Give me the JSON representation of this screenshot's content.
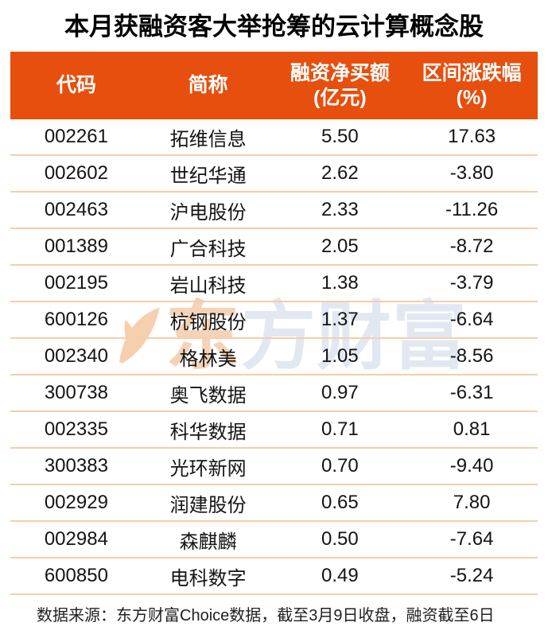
{
  "title": "本月获融资客大举抢筹的云计算概念股",
  "header": {
    "cells": [
      {
        "l1": "代码",
        "l2": ""
      },
      {
        "l1": "简称",
        "l2": ""
      },
      {
        "l1": "融资净买额",
        "l2": "(亿元)"
      },
      {
        "l1": "区间涨跌幅",
        "l2": "(%)"
      }
    ]
  },
  "chart_data": {
    "type": "table",
    "title": "本月获融资客大举抢筹的云计算概念股",
    "columns": [
      "代码",
      "简称",
      "融资净买额(亿元)",
      "区间涨跌幅(%)"
    ],
    "rows": [
      [
        "002261",
        "拓维信息",
        "5.50",
        "17.63"
      ],
      [
        "002602",
        "世纪华通",
        "2.62",
        "-3.80"
      ],
      [
        "002463",
        "沪电股份",
        "2.33",
        "-11.26"
      ],
      [
        "001389",
        "广合科技",
        "2.05",
        "-8.72"
      ],
      [
        "002195",
        "岩山科技",
        "1.38",
        "-3.79"
      ],
      [
        "600126",
        "杭钢股份",
        "1.37",
        "-6.64"
      ],
      [
        "002340",
        "格林美",
        "1.05",
        "-8.56"
      ],
      [
        "300738",
        "奥飞数据",
        "0.97",
        "-6.31"
      ],
      [
        "002335",
        "科华数据",
        "0.71",
        "0.81"
      ],
      [
        "300383",
        "光环新网",
        "0.70",
        "-9.40"
      ],
      [
        "002929",
        "润建股份",
        "0.65",
        "7.80"
      ],
      [
        "002984",
        "森麒麟",
        "0.50",
        "-7.64"
      ],
      [
        "600850",
        "电科数字",
        "0.49",
        "-5.24"
      ]
    ]
  },
  "watermark": {
    "logo": "eastmoney-swoosh-icon",
    "first_char": "东",
    "rest_chars": "方财富"
  },
  "footer": {
    "source": "数据来源：东方财富Choice数据，截至3月9日收盘，融资截至6日"
  },
  "colors": {
    "header_bg": "#E64F0D",
    "header_text": "#FFFFFF",
    "divider": "#F8CDA8",
    "body_text": "#141414",
    "watermark_orange": "#F4D3B6",
    "watermark_blue": "#E1E8F2"
  }
}
